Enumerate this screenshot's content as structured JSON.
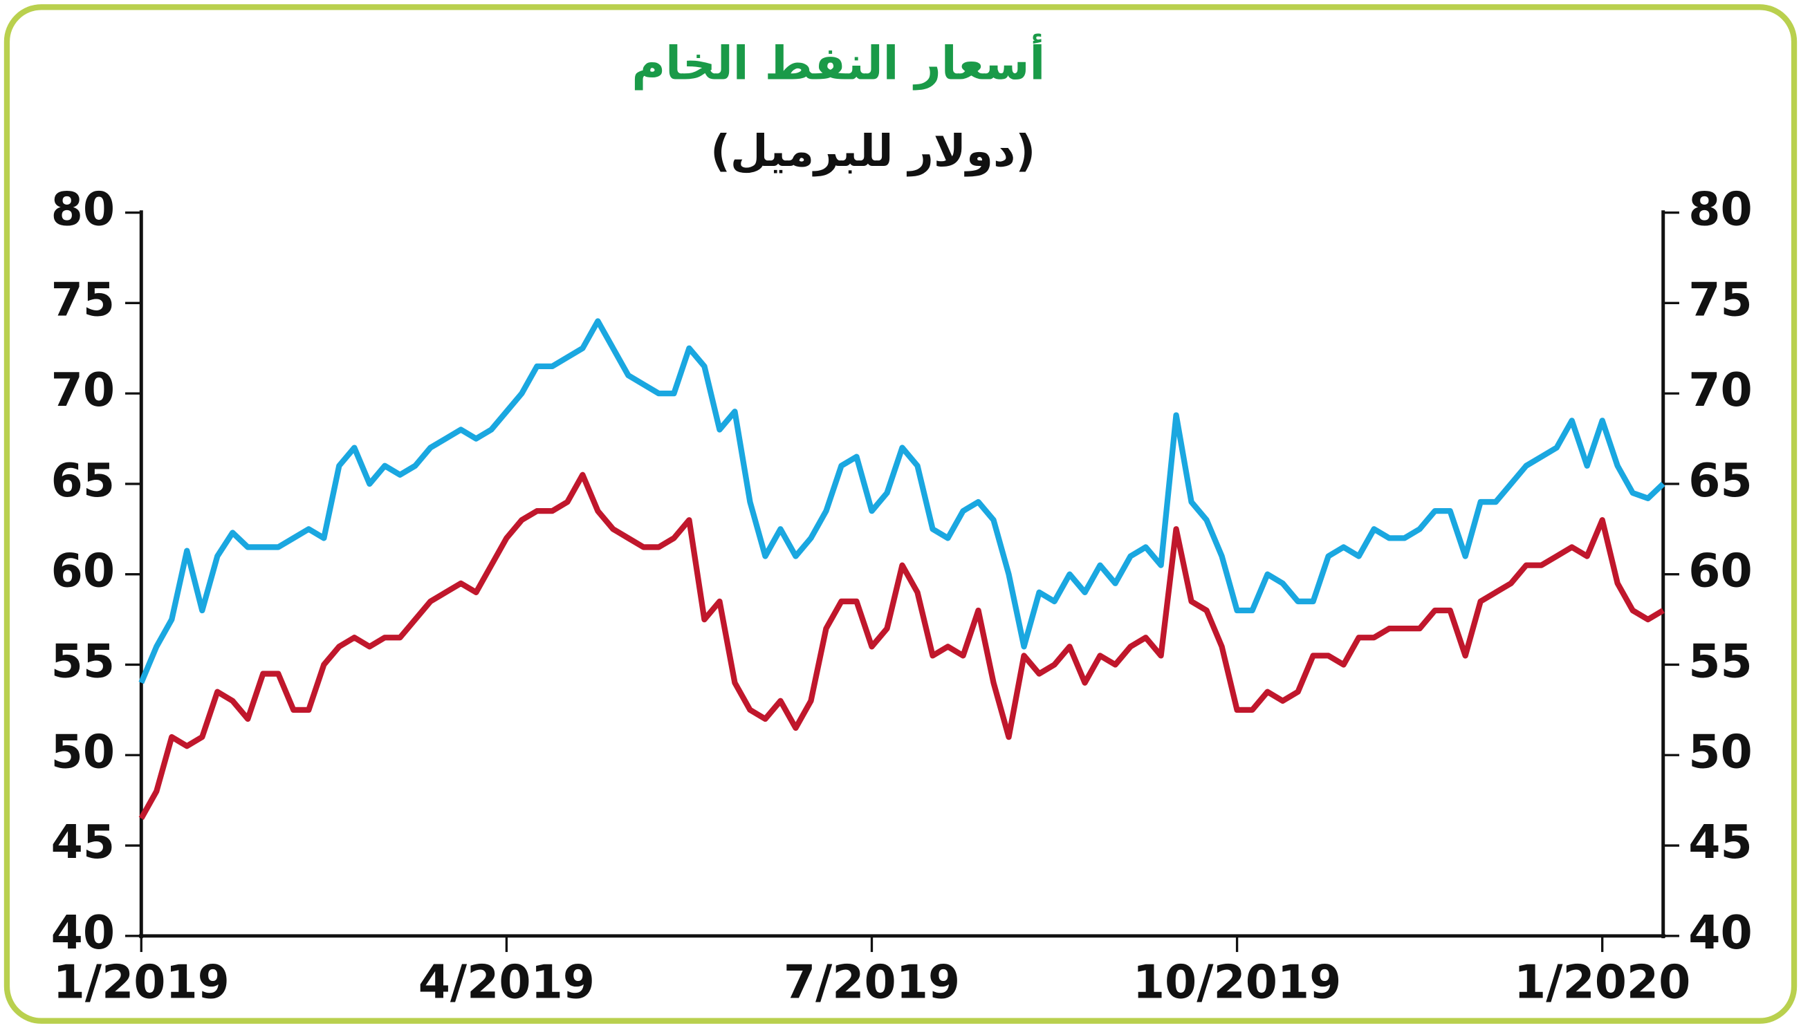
{
  "chart_data": {
    "type": "line",
    "title": "أسعار النفط الخام",
    "subtitle": "(دولار للبرميل)",
    "categories": [
      "1/2019",
      null,
      null,
      null,
      null,
      null,
      null,
      null,
      null,
      null,
      null,
      null,
      null,
      null,
      null,
      null,
      null,
      null,
      null,
      null,
      null,
      null,
      null,
      null,
      "4/2019",
      null,
      null,
      null,
      null,
      null,
      null,
      null,
      null,
      null,
      null,
      null,
      null,
      null,
      null,
      null,
      null,
      null,
      null,
      null,
      null,
      null,
      null,
      null,
      "7/2019",
      null,
      null,
      null,
      null,
      null,
      null,
      null,
      null,
      null,
      null,
      null,
      null,
      null,
      null,
      null,
      null,
      null,
      null,
      null,
      null,
      null,
      null,
      null,
      "10/2019",
      null,
      null,
      null,
      null,
      null,
      null,
      null,
      null,
      null,
      null,
      null,
      null,
      null,
      null,
      null,
      null,
      null,
      null,
      null,
      null,
      null,
      null,
      null,
      "1/2020",
      null,
      null,
      null,
      null
    ],
    "series": [
      {
        "color": "#1aa7e0",
        "values": [
          54,
          56,
          57.5,
          61.3,
          58,
          61,
          62.3,
          61.5,
          61.5,
          61.5,
          62,
          62.5,
          62,
          66,
          67,
          65,
          66,
          65.5,
          66,
          67,
          67.5,
          68,
          67.5,
          68,
          69,
          70,
          71.5,
          71.5,
          72,
          72.5,
          74,
          72.5,
          71,
          70.5,
          70,
          70,
          72.5,
          71.5,
          68,
          69,
          64,
          61,
          62.5,
          61,
          62,
          63.5,
          66,
          66.5,
          63.5,
          64.5,
          67,
          66,
          62.5,
          62,
          63.5,
          64,
          63,
          60,
          56,
          59,
          58.5,
          60,
          59,
          60.5,
          59.5,
          61,
          61.5,
          60.5,
          68.8,
          64,
          63,
          61,
          58,
          58,
          60,
          59.5,
          58.5,
          58.5,
          61,
          61.5,
          61,
          62.5,
          62,
          62,
          62.5,
          63.5,
          63.5,
          61,
          64,
          64,
          65,
          66,
          66.5,
          67,
          68.5,
          66,
          68.5,
          66,
          64.5,
          64.2,
          65
        ]
      },
      {
        "color": "#c0172c",
        "values": [
          46.5,
          48,
          51,
          50.5,
          51,
          53.5,
          53,
          52,
          54.5,
          54.5,
          52.5,
          52.5,
          55,
          56,
          56.5,
          56,
          56.5,
          56.5,
          57.5,
          58.5,
          59,
          59.5,
          59,
          60.5,
          62,
          63,
          63.5,
          63.5,
          64,
          65.5,
          63.5,
          62.5,
          62,
          61.5,
          61.5,
          62,
          63,
          57.5,
          58.5,
          54,
          52.5,
          52,
          53,
          51.5,
          53,
          57,
          58.5,
          58.5,
          56,
          57,
          60.5,
          59,
          55.5,
          56,
          55.5,
          58,
          54,
          51,
          55.5,
          54.5,
          55,
          56,
          54,
          55.5,
          55,
          56,
          56.5,
          55.5,
          62.5,
          58.5,
          58,
          56,
          52.5,
          52.5,
          53.5,
          53,
          53.5,
          55.5,
          55.5,
          55,
          56.5,
          56.5,
          57,
          57,
          57,
          58,
          58,
          55.5,
          58.5,
          59,
          59.5,
          60.5,
          60.5,
          61,
          61.5,
          61,
          63,
          59.5,
          58,
          57.5,
          58
        ]
      }
    ],
    "ylim": [
      40,
      80
    ],
    "yticks": [
      40,
      45,
      50,
      55,
      60,
      65,
      70,
      75,
      80
    ],
    "title_color": "#1a9a48",
    "frame_color": "#b9d04e"
  }
}
